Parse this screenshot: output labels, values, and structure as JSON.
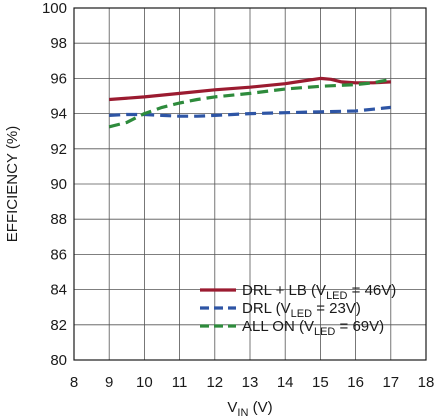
{
  "chart_data": {
    "type": "line",
    "xlabel": {
      "main": "V",
      "sub": "IN",
      "unit": " (V)"
    },
    "ylabel": "EFFICIENCY (%)",
    "xlim": [
      8,
      18
    ],
    "ylim": [
      80,
      100
    ],
    "x_ticks": [
      8,
      9,
      10,
      11,
      12,
      13,
      14,
      15,
      16,
      17,
      18
    ],
    "y_ticks": [
      80,
      82,
      84,
      86,
      88,
      90,
      92,
      94,
      96,
      98,
      100
    ],
    "grid": true,
    "legend_position": "bottom-right",
    "series": [
      {
        "name": "DRL + LB (VLED = 46V)",
        "legend": {
          "pre": "DRL + LB (V",
          "sub": "LED",
          "post": " = 46V)"
        },
        "color": "#9b1b30",
        "style": "solid",
        "x": [
          9,
          10,
          11,
          12,
          13,
          14,
          14.5,
          15,
          15.3,
          15.6,
          16,
          16.5,
          17
        ],
        "y": [
          94.8,
          94.95,
          95.15,
          95.35,
          95.5,
          95.7,
          95.85,
          96.0,
          95.95,
          95.8,
          95.75,
          95.75,
          95.8
        ]
      },
      {
        "name": "DRL (VLED = 23V)",
        "legend": {
          "pre": "DRL (V",
          "sub": "LED",
          "post": " = 23V)"
        },
        "color": "#2e55a5",
        "style": "dash",
        "x": [
          9,
          9.5,
          10,
          10.5,
          11,
          11.5,
          12,
          13,
          14,
          15,
          16,
          16.5,
          17
        ],
        "y": [
          93.9,
          93.95,
          93.95,
          93.9,
          93.85,
          93.85,
          93.9,
          94.0,
          94.05,
          94.1,
          94.15,
          94.25,
          94.35
        ]
      },
      {
        "name": "ALL ON (VLED = 69V)",
        "legend": {
          "pre": "ALL ON (V",
          "sub": "LED",
          "post": " = 69V)"
        },
        "color": "#2e8b3c",
        "style": "dash",
        "x": [
          9,
          9.5,
          10,
          10.5,
          11,
          11.5,
          12,
          13,
          14,
          15,
          16,
          16.5,
          17
        ],
        "y": [
          93.25,
          93.5,
          94.0,
          94.35,
          94.6,
          94.8,
          94.95,
          95.15,
          95.4,
          95.55,
          95.65,
          95.75,
          95.95
        ]
      }
    ]
  }
}
